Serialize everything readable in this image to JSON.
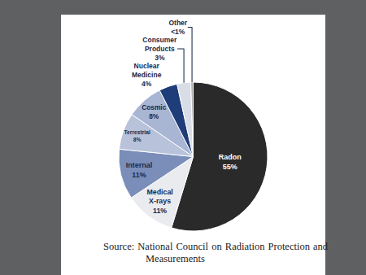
{
  "chart_data": {
    "type": "pie",
    "categories": [
      "Radon",
      "Medical X-rays",
      "Internal",
      "Terrestrial",
      "Cosmic",
      "Nuclear Medicine",
      "Consumer Products",
      "Other"
    ],
    "values": [
      55,
      11,
      11,
      8,
      8,
      4,
      3,
      0.5
    ],
    "value_labels": [
      "55%",
      "11%",
      "11%",
      "8%",
      "8%",
      "4%",
      "3%",
      "<1%"
    ],
    "colors": [
      "#2a2a2a",
      "#e9ebef",
      "#7a8eb9",
      "#b8c2da",
      "#a8b5d3",
      "#1f3d78",
      "#d9dde6",
      "#a9a9a9"
    ],
    "data_labels": true,
    "annotations": [
      "Source: National Council on Radiation Protection and Measurements"
    ]
  }
}
